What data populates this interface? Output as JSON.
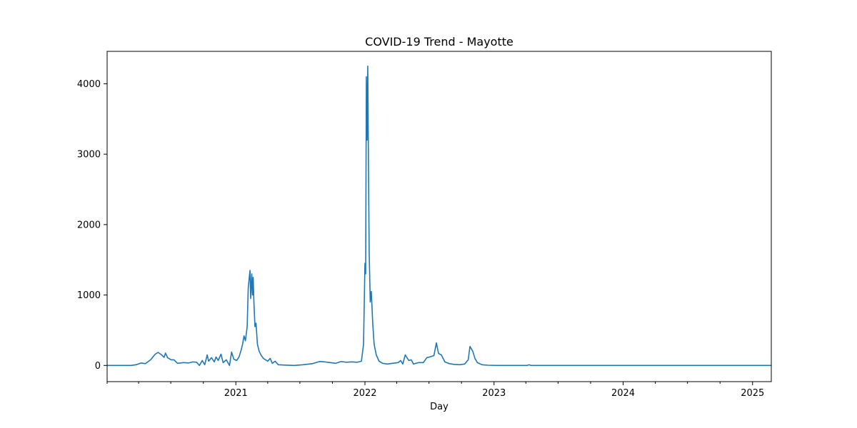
{
  "chart_data": {
    "type": "line",
    "title": "COVID-19 Trend - Mayotte",
    "xlabel": "Day",
    "ylabel": "",
    "xlim": [
      "2020-01-03",
      "2025-02-23"
    ],
    "ylim": [
      -230,
      4460
    ],
    "grid": false,
    "legend": "none",
    "line_color": "#1f77b4",
    "x_ticks": [
      {
        "date": "2021-01-01",
        "label": "2021"
      },
      {
        "date": "2022-01-01",
        "label": "2022"
      },
      {
        "date": "2023-01-01",
        "label": "2023"
      },
      {
        "date": "2024-01-01",
        "label": "2024"
      },
      {
        "date": "2025-01-01",
        "label": "2025"
      }
    ],
    "x_minor_ticks": [
      "2020-01-03",
      "2020-04-01",
      "2020-07-01",
      "2020-10-01",
      "2021-04-01",
      "2021-07-01",
      "2021-10-01",
      "2022-04-01",
      "2022-07-01",
      "2022-10-01",
      "2023-04-01",
      "2023-07-01",
      "2023-10-01",
      "2024-04-01",
      "2024-07-01",
      "2024-10-01"
    ],
    "y_ticks": [
      {
        "value": 0,
        "label": "0"
      },
      {
        "value": 1000,
        "label": "1000"
      },
      {
        "value": 2000,
        "label": "2000"
      },
      {
        "value": 3000,
        "label": "3000"
      },
      {
        "value": 4000,
        "label": "4000"
      }
    ],
    "series": [
      {
        "points": [
          [
            "2020-01-03",
            0
          ],
          [
            "2020-03-10",
            0
          ],
          [
            "2020-03-25",
            10
          ],
          [
            "2020-04-08",
            35
          ],
          [
            "2020-04-20",
            25
          ],
          [
            "2020-05-05",
            80
          ],
          [
            "2020-05-18",
            160
          ],
          [
            "2020-05-26",
            185
          ],
          [
            "2020-06-05",
            150
          ],
          [
            "2020-06-12",
            115
          ],
          [
            "2020-06-16",
            175
          ],
          [
            "2020-06-22",
            110
          ],
          [
            "2020-07-02",
            80
          ],
          [
            "2020-07-10",
            80
          ],
          [
            "2020-07-20",
            30
          ],
          [
            "2020-08-05",
            40
          ],
          [
            "2020-08-20",
            35
          ],
          [
            "2020-09-01",
            50
          ],
          [
            "2020-09-12",
            45
          ],
          [
            "2020-09-20",
            0
          ],
          [
            "2020-09-28",
            70
          ],
          [
            "2020-10-05",
            10
          ],
          [
            "2020-10-12",
            150
          ],
          [
            "2020-10-16",
            60
          ],
          [
            "2020-10-24",
            110
          ],
          [
            "2020-11-01",
            50
          ],
          [
            "2020-11-06",
            120
          ],
          [
            "2020-11-12",
            70
          ],
          [
            "2020-11-20",
            160
          ],
          [
            "2020-11-26",
            40
          ],
          [
            "2020-12-05",
            80
          ],
          [
            "2020-12-14",
            0
          ],
          [
            "2020-12-20",
            190
          ],
          [
            "2020-12-26",
            90
          ],
          [
            "2021-01-03",
            70
          ],
          [
            "2021-01-10",
            120
          ],
          [
            "2021-01-16",
            220
          ],
          [
            "2021-01-20",
            300
          ],
          [
            "2021-01-24",
            420
          ],
          [
            "2021-01-28",
            350
          ],
          [
            "2021-02-02",
            550
          ],
          [
            "2021-02-05",
            1100
          ],
          [
            "2021-02-08",
            1250
          ],
          [
            "2021-02-10",
            1350
          ],
          [
            "2021-02-12",
            950
          ],
          [
            "2021-02-15",
            1300
          ],
          [
            "2021-02-17",
            1000
          ],
          [
            "2021-02-19",
            1250
          ],
          [
            "2021-02-21",
            900
          ],
          [
            "2021-02-24",
            550
          ],
          [
            "2021-02-27",
            600
          ],
          [
            "2021-03-03",
            300
          ],
          [
            "2021-03-08",
            200
          ],
          [
            "2021-03-14",
            140
          ],
          [
            "2021-03-20",
            100
          ],
          [
            "2021-04-01",
            60
          ],
          [
            "2021-04-08",
            100
          ],
          [
            "2021-04-14",
            30
          ],
          [
            "2021-04-22",
            60
          ],
          [
            "2021-05-01",
            10
          ],
          [
            "2021-05-20",
            5
          ],
          [
            "2021-06-15",
            0
          ],
          [
            "2021-07-10",
            10
          ],
          [
            "2021-08-05",
            25
          ],
          [
            "2021-08-25",
            55
          ],
          [
            "2021-09-10",
            50
          ],
          [
            "2021-09-25",
            40
          ],
          [
            "2021-10-10",
            30
          ],
          [
            "2021-10-25",
            55
          ],
          [
            "2021-11-10",
            45
          ],
          [
            "2021-11-25",
            50
          ],
          [
            "2021-12-10",
            45
          ],
          [
            "2021-12-22",
            60
          ],
          [
            "2021-12-28",
            300
          ],
          [
            "2022-01-01",
            1450
          ],
          [
            "2022-01-03",
            1300
          ],
          [
            "2022-01-05",
            4100
          ],
          [
            "2022-01-07",
            3200
          ],
          [
            "2022-01-09",
            4250
          ],
          [
            "2022-01-11",
            2800
          ],
          [
            "2022-01-13",
            1600
          ],
          [
            "2022-01-16",
            900
          ],
          [
            "2022-01-19",
            1050
          ],
          [
            "2022-01-23",
            600
          ],
          [
            "2022-01-27",
            300
          ],
          [
            "2022-02-02",
            150
          ],
          [
            "2022-02-10",
            60
          ],
          [
            "2022-02-20",
            30
          ],
          [
            "2022-03-05",
            20
          ],
          [
            "2022-03-20",
            30
          ],
          [
            "2022-04-05",
            40
          ],
          [
            "2022-04-12",
            70
          ],
          [
            "2022-04-18",
            20
          ],
          [
            "2022-04-25",
            150
          ],
          [
            "2022-05-05",
            70
          ],
          [
            "2022-05-12",
            80
          ],
          [
            "2022-05-18",
            20
          ],
          [
            "2022-06-01",
            40
          ],
          [
            "2022-06-15",
            40
          ],
          [
            "2022-06-25",
            110
          ],
          [
            "2022-07-03",
            120
          ],
          [
            "2022-07-15",
            140
          ],
          [
            "2022-07-22",
            320
          ],
          [
            "2022-07-28",
            170
          ],
          [
            "2022-08-05",
            150
          ],
          [
            "2022-08-15",
            50
          ],
          [
            "2022-08-28",
            25
          ],
          [
            "2022-09-10",
            15
          ],
          [
            "2022-09-25",
            10
          ],
          [
            "2022-10-10",
            20
          ],
          [
            "2022-10-20",
            80
          ],
          [
            "2022-10-25",
            270
          ],
          [
            "2022-11-02",
            200
          ],
          [
            "2022-11-08",
            100
          ],
          [
            "2022-11-15",
            40
          ],
          [
            "2022-11-28",
            10
          ],
          [
            "2022-12-15",
            3
          ],
          [
            "2023-01-10",
            0
          ],
          [
            "2023-04-05",
            0
          ],
          [
            "2023-04-10",
            10
          ],
          [
            "2023-04-15",
            0
          ],
          [
            "2025-02-23",
            0
          ]
        ]
      }
    ]
  }
}
